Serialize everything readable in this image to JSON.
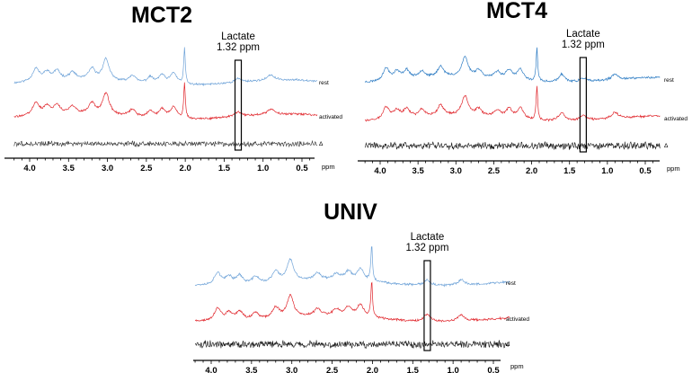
{
  "chart_data": [
    {
      "type": "line",
      "title": "MCT2",
      "xlabel": "ppm",
      "xlim": [
        4.2,
        0.3
      ],
      "x_reversed": true,
      "xticks": [
        "4.0",
        "3.5",
        "3.0",
        "2.5",
        "2.0",
        "1.5",
        "1.0",
        "0.5"
      ],
      "annotation": {
        "text": [
          "Lactate",
          "1.32 ppm"
        ],
        "ppm": 1.32
      },
      "series": [
        {
          "name": "rest",
          "color": "#6fa3d8",
          "peaks": [
            [
              3.92,
              14
            ],
            [
              3.78,
              9
            ],
            [
              3.65,
              10
            ],
            [
              3.45,
              8
            ],
            [
              3.2,
              12
            ],
            [
              3.02,
              24
            ],
            [
              2.68,
              8
            ],
            [
              2.45,
              7
            ],
            [
              2.3,
              10
            ],
            [
              2.15,
              13
            ],
            [
              2.01,
              40
            ],
            [
              1.32,
              4
            ],
            [
              0.9,
              6
            ]
          ]
        },
        {
          "name": "activated",
          "color": "#e0262c",
          "peaks": [
            [
              3.92,
              14
            ],
            [
              3.78,
              9
            ],
            [
              3.65,
              10
            ],
            [
              3.45,
              8
            ],
            [
              3.2,
              12
            ],
            [
              3.02,
              24
            ],
            [
              2.68,
              8
            ],
            [
              2.45,
              7
            ],
            [
              2.3,
              10
            ],
            [
              2.15,
              13
            ],
            [
              2.01,
              40
            ],
            [
              1.32,
              5
            ],
            [
              0.9,
              6
            ]
          ]
        },
        {
          "name": "Δ",
          "color": "#333333",
          "peaks": []
        }
      ]
    },
    {
      "type": "line",
      "title": "MCT4",
      "xlabel": "ppm",
      "xlim": [
        4.2,
        0.3
      ],
      "x_reversed": true,
      "xticks": [
        "4.0",
        "3.5",
        "3.0",
        "2.5",
        "2.0",
        "1.5",
        "1.0",
        "0.5"
      ],
      "annotation": {
        "text": [
          "Lactate",
          "1.32 ppm"
        ],
        "ppm": 1.32
      },
      "series": [
        {
          "name": "rest",
          "color": "#2f7dc4",
          "peaks": [
            [
              3.92,
              14
            ],
            [
              3.78,
              9
            ],
            [
              3.65,
              10
            ],
            [
              3.45,
              8
            ],
            [
              3.2,
              12
            ],
            [
              2.88,
              22
            ],
            [
              2.7,
              8
            ],
            [
              2.45,
              7
            ],
            [
              2.3,
              10
            ],
            [
              2.15,
              12
            ],
            [
              1.93,
              38
            ],
            [
              1.6,
              9
            ],
            [
              1.32,
              4
            ],
            [
              0.9,
              6
            ]
          ]
        },
        {
          "name": "activated",
          "color": "#e0262c",
          "peaks": [
            [
              3.92,
              14
            ],
            [
              3.78,
              9
            ],
            [
              3.65,
              10
            ],
            [
              3.45,
              8
            ],
            [
              3.2,
              12
            ],
            [
              2.88,
              22
            ],
            [
              2.7,
              8
            ],
            [
              2.45,
              7
            ],
            [
              2.3,
              10
            ],
            [
              2.15,
              12
            ],
            [
              1.93,
              38
            ],
            [
              1.6,
              9
            ],
            [
              1.32,
              6
            ],
            [
              0.9,
              7
            ]
          ]
        },
        {
          "name": "Δ",
          "color": "#111111",
          "peaks": []
        }
      ]
    },
    {
      "type": "line",
      "title": "UNIV",
      "xlabel": "ppm",
      "xlim": [
        4.2,
        0.3
      ],
      "x_reversed": true,
      "xticks": [
        "4.0",
        "3.5",
        "3.0",
        "2.5",
        "2.0",
        "1.5",
        "1.0",
        "0.5"
      ],
      "annotation": {
        "text": [
          "Lactate",
          "1.32 ppm"
        ],
        "ppm": 1.32
      },
      "series": [
        {
          "name": "rest",
          "color": "#6fa3d8",
          "peaks": [
            [
              3.92,
              14
            ],
            [
              3.78,
              9
            ],
            [
              3.65,
              10
            ],
            [
              3.45,
              8
            ],
            [
              3.2,
              12
            ],
            [
              3.02,
              24
            ],
            [
              2.68,
              8
            ],
            [
              2.45,
              7
            ],
            [
              2.3,
              10
            ],
            [
              2.15,
              13
            ],
            [
              2.01,
              40
            ],
            [
              1.32,
              6
            ],
            [
              0.9,
              6
            ]
          ]
        },
        {
          "name": "activated",
          "color": "#e0262c",
          "peaks": [
            [
              3.92,
              14
            ],
            [
              3.78,
              9
            ],
            [
              3.65,
              10
            ],
            [
              3.45,
              8
            ],
            [
              3.2,
              12
            ],
            [
              3.02,
              24
            ],
            [
              2.68,
              8
            ],
            [
              2.45,
              7
            ],
            [
              2.3,
              10
            ],
            [
              2.15,
              13
            ],
            [
              2.01,
              40
            ],
            [
              1.32,
              8
            ],
            [
              0.9,
              7
            ]
          ]
        },
        {
          "name": "Δ",
          "color": "#111111",
          "peaks": []
        }
      ]
    }
  ]
}
